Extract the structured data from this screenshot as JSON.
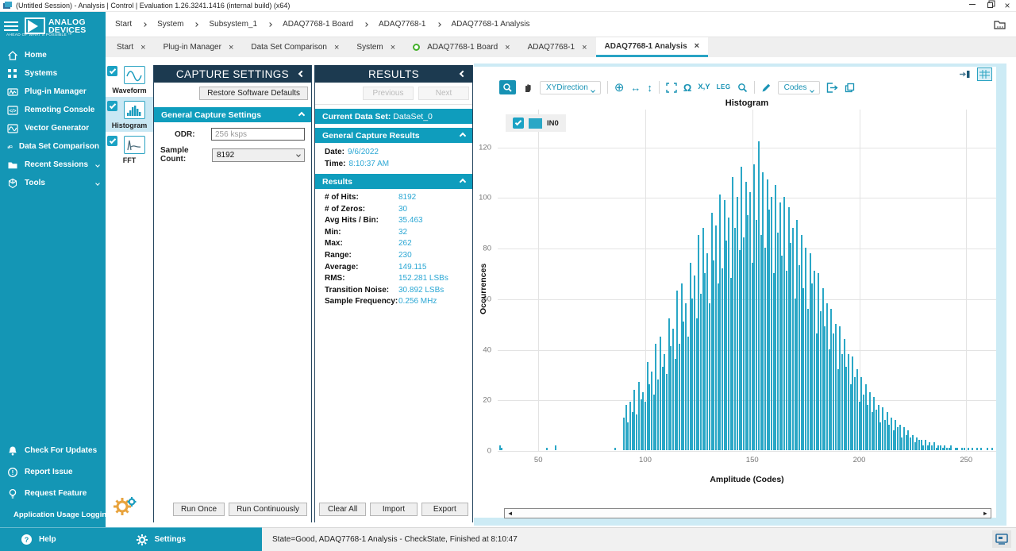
{
  "window": {
    "title": "(Untitled Session) - Analysis | Control | Evaluation 1.26.3241.1416 (internal build) (x64)"
  },
  "brand": {
    "line1": "ANALOG",
    "line2": "DEVICES",
    "tagline": "AHEAD OF WHAT'S POSSIBLE ™"
  },
  "breadcrumb": {
    "items": [
      "Start",
      "System",
      "Subsystem_1",
      "ADAQ7768-1 Board",
      "ADAQ7768-1",
      "ADAQ7768-1 Analysis"
    ]
  },
  "sidebar": {
    "items": [
      {
        "label": "Home"
      },
      {
        "label": "Systems"
      },
      {
        "label": "Plug-in Manager"
      },
      {
        "label": "Remoting Console"
      },
      {
        "label": "Vector Generator"
      },
      {
        "label": "Data Set Comparison"
      },
      {
        "label": "Recent Sessions"
      },
      {
        "label": "Tools"
      }
    ],
    "bottom_items": [
      {
        "label": "Check For Updates"
      },
      {
        "label": "Report Issue"
      },
      {
        "label": "Request Feature"
      },
      {
        "label": "Application Usage Logging"
      }
    ],
    "footer": {
      "help": "Help",
      "settings": "Settings"
    }
  },
  "tabs": [
    {
      "label": "Start"
    },
    {
      "label": "Plug-in Manager"
    },
    {
      "label": "Data Set Comparison"
    },
    {
      "label": "System"
    },
    {
      "label": "ADAQ7768-1 Board"
    },
    {
      "label": "ADAQ7768-1"
    },
    {
      "label": "ADAQ7768-1 Analysis"
    }
  ],
  "toolstrip": {
    "items": [
      {
        "label": "Waveform"
      },
      {
        "label": "Histogram"
      },
      {
        "label": "FFT"
      }
    ]
  },
  "capture_settings": {
    "title": "CAPTURE SETTINGS",
    "restore_button": "Restore Software Defaults",
    "section": "General Capture Settings",
    "odr_label": "ODR:",
    "odr_value": "256 ksps",
    "sample_count_label": "Sample Count:",
    "sample_count_value": "8192",
    "run_once": "Run Once",
    "run_continuously": "Run Continuously"
  },
  "results": {
    "title": "RESULTS",
    "previous": "Previous",
    "next": "Next",
    "current_data_set_label": "Current Data Set:",
    "current_data_set": "DataSet_0",
    "general_section": "General Capture Results",
    "date_label": "Date:",
    "date": "9/6/2022",
    "time_label": "Time:",
    "time": "8:10:37 AM",
    "results_section": "Results",
    "stats": [
      {
        "label": "# of Hits:",
        "value": "8192"
      },
      {
        "label": "# of Zeros:",
        "value": "30"
      },
      {
        "label": "Avg Hits / Bin:",
        "value": "35.463"
      },
      {
        "label": "Min:",
        "value": "32"
      },
      {
        "label": "Max:",
        "value": "262"
      },
      {
        "label": "Range:",
        "value": "230"
      },
      {
        "label": "Average:",
        "value": "149.115"
      },
      {
        "label": "RMS:",
        "value": "152.281 LSBs"
      },
      {
        "label": "Transition Noise:",
        "value": "30.892 LSBs"
      },
      {
        "label": "Sample Frequency:",
        "value": "0.256 MHz"
      }
    ],
    "clear_all": "Clear All",
    "import": "Import",
    "export": "Export"
  },
  "chart": {
    "toolbar": {
      "xydirection": "XYDirection",
      "xy": "X,Y",
      "leg": "LEG",
      "codes": "Codes"
    },
    "legend_label": "IN0",
    "colors": {
      "bar": "#2AA7C6",
      "teal": "#1496B5",
      "header_navy": "#1C3A50",
      "section_teal": "#0F9DBD",
      "value_blue": "#2BA7D4"
    }
  },
  "chart_data": {
    "type": "bar",
    "title": "Histogram",
    "xlabel": "Amplitude (Codes)",
    "ylabel": "Occurrences",
    "series_name": "IN0",
    "x_start": 32,
    "x_step": 1,
    "xlim": [
      31,
      264
    ],
    "ylim": [
      0,
      135
    ],
    "xticks": [
      50,
      100,
      150,
      200,
      250
    ],
    "yticks": [
      0,
      20,
      40,
      60,
      80,
      100,
      120
    ],
    "grid": true,
    "counts": [
      2,
      1,
      0,
      0,
      0,
      0,
      0,
      0,
      0,
      0,
      0,
      0,
      0,
      0,
      0,
      0,
      0,
      0,
      0,
      0,
      0,
      0,
      1,
      0,
      0,
      0,
      2,
      0,
      0,
      0,
      0,
      0,
      0,
      0,
      0,
      0,
      0,
      0,
      0,
      0,
      0,
      0,
      0,
      0,
      0,
      0,
      0,
      0,
      0,
      0,
      0,
      0,
      0,
      0,
      1,
      0,
      0,
      0,
      13,
      18,
      11,
      19,
      15,
      24,
      14,
      27,
      20,
      23,
      19,
      35,
      26,
      31,
      22,
      42,
      28,
      45,
      33,
      38,
      30,
      52,
      41,
      48,
      36,
      63,
      42,
      66,
      51,
      58,
      45,
      74,
      60,
      69,
      52,
      85,
      62,
      88,
      70,
      78,
      58,
      94,
      75,
      89,
      66,
      101,
      72,
      99,
      83,
      92,
      68,
      108,
      88,
      100,
      79,
      112,
      84,
      106,
      93,
      102,
      74,
      113,
      91,
      122,
      85,
      110,
      80,
      107,
      95,
      100,
      70,
      105,
      86,
      98,
      77,
      100,
      71,
      96,
      82,
      88,
      60,
      91,
      73,
      85,
      64,
      80,
      56,
      78,
      66,
      71,
      46,
      70,
      55,
      64,
      49,
      58,
      40,
      56,
      46,
      50,
      32,
      49,
      38,
      44,
      33,
      38,
      26,
      37,
      29,
      32,
      19,
      29,
      22,
      26,
      18,
      23,
      15,
      21,
      16,
      18,
      11,
      17,
      12,
      15,
      10,
      13,
      8,
      12,
      9,
      10,
      5,
      9,
      6,
      8,
      5,
      6,
      3,
      5,
      4,
      4,
      2,
      4,
      2,
      3,
      2,
      3,
      1,
      2,
      2,
      1,
      2,
      1,
      1,
      2,
      0,
      1,
      1,
      0,
      1,
      1,
      0,
      1,
      0,
      1,
      0,
      1,
      0,
      1,
      0,
      0,
      1,
      0,
      1
    ]
  },
  "statusbar": {
    "text": "State=Good, ADAQ7768-1 Analysis - CheckState, Finished at 8:10:47"
  }
}
